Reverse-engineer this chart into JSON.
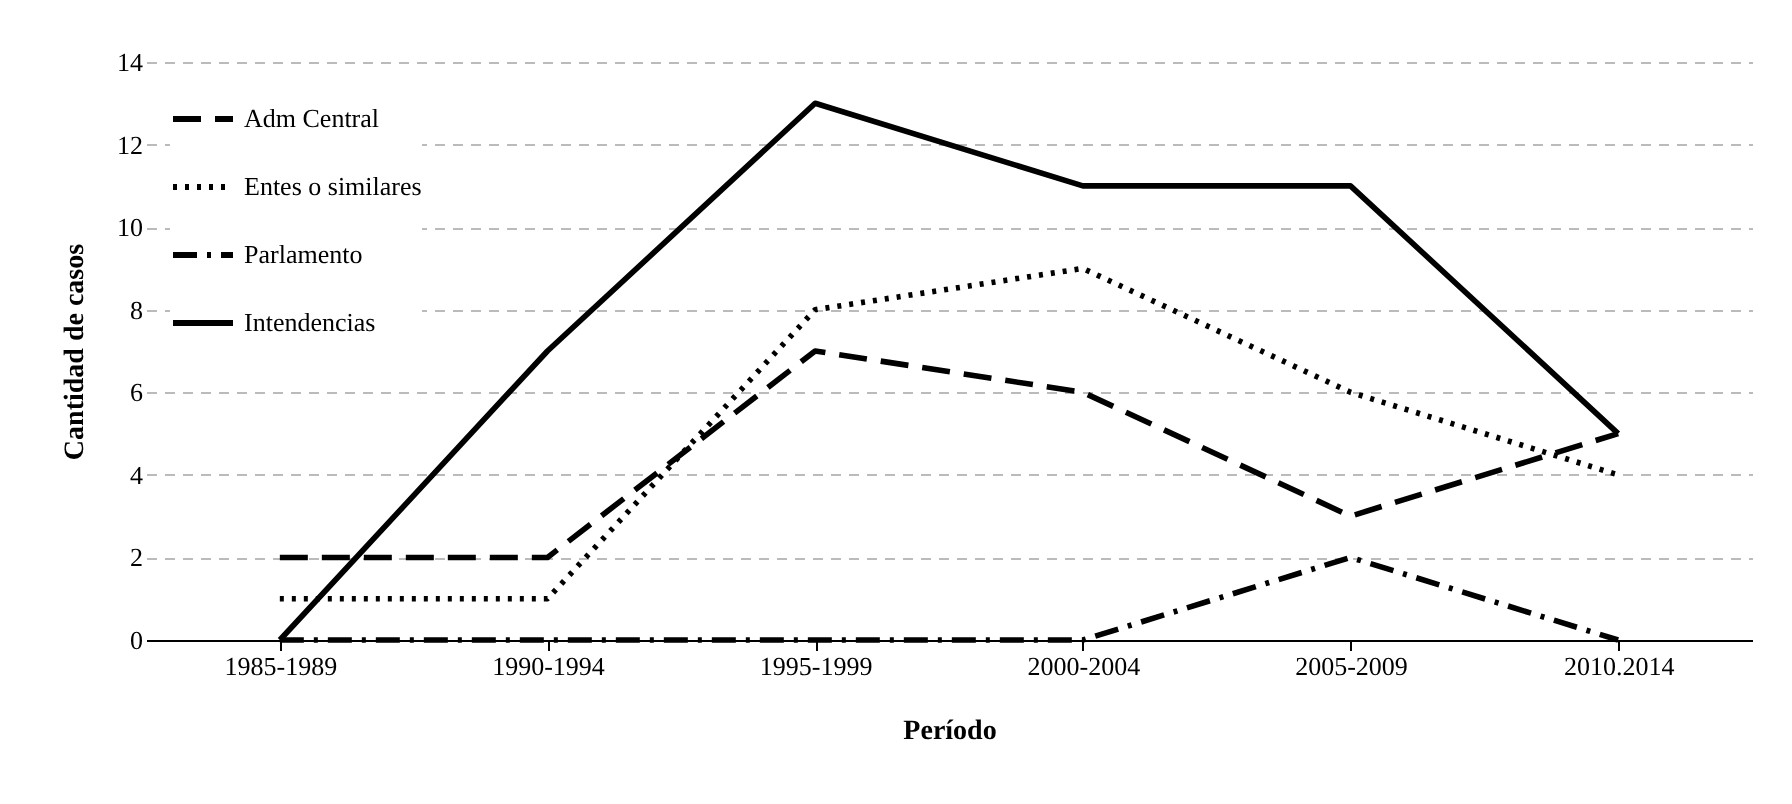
{
  "chart_data": {
    "type": "line",
    "xlabel": "Período",
    "ylabel": "Cantidad de casos",
    "categories": [
      "1985-1989",
      "1990-1994",
      "1995-1999",
      "2000-2004",
      "2005-2009",
      "2010.2014"
    ],
    "series": [
      {
        "name": "Adm Central",
        "color": "#000000",
        "line_style": "dashed",
        "values": [
          2,
          2,
          7,
          6,
          3,
          5
        ]
      },
      {
        "name": "Entes o similares",
        "color": "#000000",
        "line_style": "dotted",
        "values": [
          1,
          1,
          8,
          9,
          6,
          4
        ]
      },
      {
        "name": "Parlamento",
        "color": "#000000",
        "line_style": "dashdot",
        "values": [
          0,
          0,
          0,
          0,
          2,
          0
        ]
      },
      {
        "name": "Intendencias",
        "color": "#000000",
        "line_style": "solid",
        "values": [
          0,
          7,
          13,
          11,
          11,
          5
        ]
      }
    ],
    "ylim": [
      0,
      14
    ],
    "yticks": [
      0,
      2,
      4,
      6,
      8,
      10,
      12,
      14
    ],
    "grid": "y",
    "legend": "top left",
    "marker": "none"
  }
}
